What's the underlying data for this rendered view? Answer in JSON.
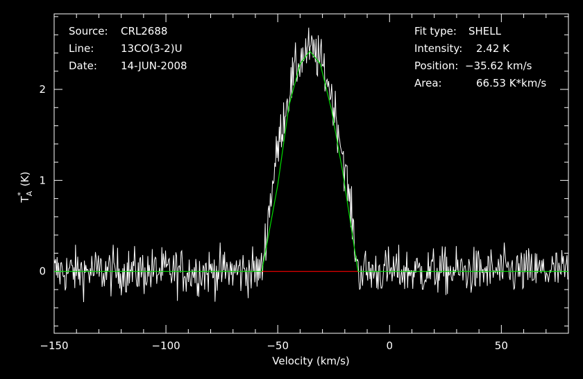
{
  "header_left": {
    "source_label": "Source:",
    "source_value": "CRL2688",
    "line_label": "Line:",
    "line_value": "13CO(3-2)U",
    "date_label": "Date:",
    "date_value": "14-JUN-2008"
  },
  "header_right": {
    "fit_type_label": "Fit type:",
    "fit_type_value": "SHELL",
    "intensity_label": "Intensity:",
    "intensity_value": "2.42 K",
    "position_label": "Position:",
    "position_value": "−35.62 km/s",
    "area_label": "Area:",
    "area_value": "66.53 K*km/s"
  },
  "chart_data": {
    "type": "line",
    "xlabel": "Velocity (km/s)",
    "ylabel_main": "T",
    "ylabel_sub": "A",
    "ylabel_sup": "*",
    "ylabel_unit": "(K)",
    "xlim": [
      -150,
      80
    ],
    "ylim": [
      -0.68,
      2.83
    ],
    "xticks": [
      -150,
      -100,
      -50,
      0,
      50
    ],
    "xtick_labels": [
      "−150",
      "−100",
      "−50",
      "0",
      "50"
    ],
    "yticks": [
      0,
      1,
      2
    ],
    "ytick_labels": [
      "0",
      "1",
      "2"
    ],
    "grid": false,
    "series": [
      {
        "kind": "spectrum",
        "color": "#ffffff",
        "description_points": "noisy spectrum, channel spacing ~0.33 km/s",
        "noise_rms": 0.13,
        "profile": {
          "center": -35.62,
          "peak": 2.42,
          "half_width": 21.5,
          "shape": "parabolic shell"
        }
      },
      {
        "kind": "fit",
        "color": "#00dd00",
        "x": [
          -150,
          -57.1,
          -50,
          -45,
          -40,
          -35.62,
          -31,
          -26,
          -21,
          -14.1,
          80
        ],
        "y": [
          0,
          0,
          0.95,
          1.82,
          2.28,
          2.42,
          2.28,
          1.78,
          1.1,
          0,
          0
        ]
      },
      {
        "kind": "baseline",
        "color": "#ff0000",
        "x": [
          -57.1,
          -14.1
        ],
        "y": [
          0,
          0
        ]
      }
    ]
  }
}
